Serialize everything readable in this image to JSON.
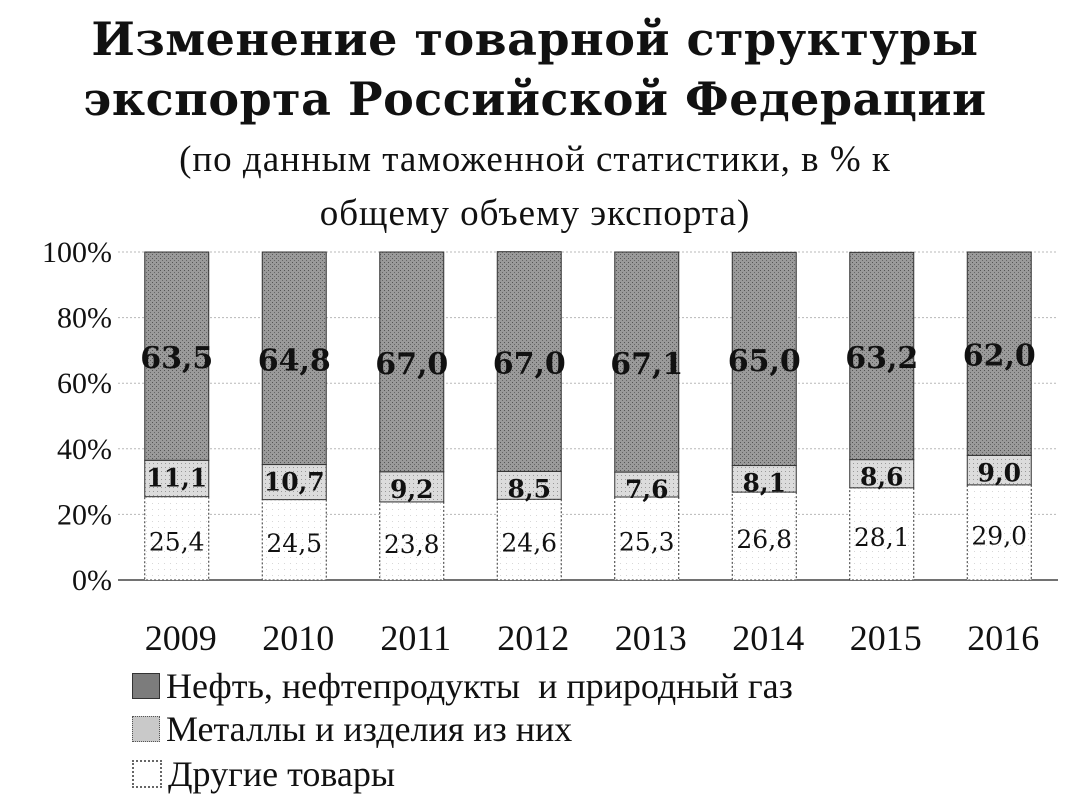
{
  "title_line1": "Изменение товарной структуры",
  "title_line2": "экспорта Российской Федерации",
  "subtitle_line1": "(по данным таможенной статистики, в % к",
  "subtitle_line2": "общему объему экспорта)",
  "chart_data": {
    "type": "bar",
    "stacked": true,
    "categories": [
      "2009",
      "2010",
      "2011",
      "2012",
      "2013",
      "2014",
      "2015",
      "2016"
    ],
    "series": [
      {
        "name": "Другие товары",
        "values": [
          25.4,
          24.5,
          23.8,
          24.6,
          25.3,
          26.8,
          28.1,
          29.0
        ],
        "labels": [
          "25,4",
          "24,5",
          "23,8",
          "24,6",
          "25,3",
          "26,8",
          "28,1",
          "29,0"
        ],
        "color": "#ffffff"
      },
      {
        "name": "Металлы и изделия из них",
        "values": [
          11.1,
          10.7,
          9.2,
          8.5,
          7.6,
          8.1,
          8.6,
          9.0
        ],
        "labels": [
          "11,1",
          "10,7",
          "9,2",
          "8,5",
          "7,6",
          "8,1",
          "8,6",
          "9,0"
        ],
        "color": "#d0d0d0"
      },
      {
        "name": "Нефть, нефтепродукты  и природный газ",
        "values": [
          63.5,
          64.8,
          67.0,
          67.0,
          67.1,
          65.0,
          63.2,
          62.0
        ],
        "labels": [
          "63,5",
          "64,8",
          "67,0",
          "67,0",
          "67,1",
          "65,0",
          "63,2",
          "62,0"
        ],
        "color": "#8a8a8a"
      }
    ],
    "ylim": [
      0,
      100
    ],
    "yticks": [
      "0%",
      "20%",
      "40%",
      "60%",
      "80%",
      "100%"
    ],
    "legend_position": "bottom-left",
    "grid": true
  },
  "legend": {
    "oil": "Нефть, нефтепродукты  и природный газ",
    "metals": "Металлы и изделия из них",
    "other": "Другие товары"
  }
}
